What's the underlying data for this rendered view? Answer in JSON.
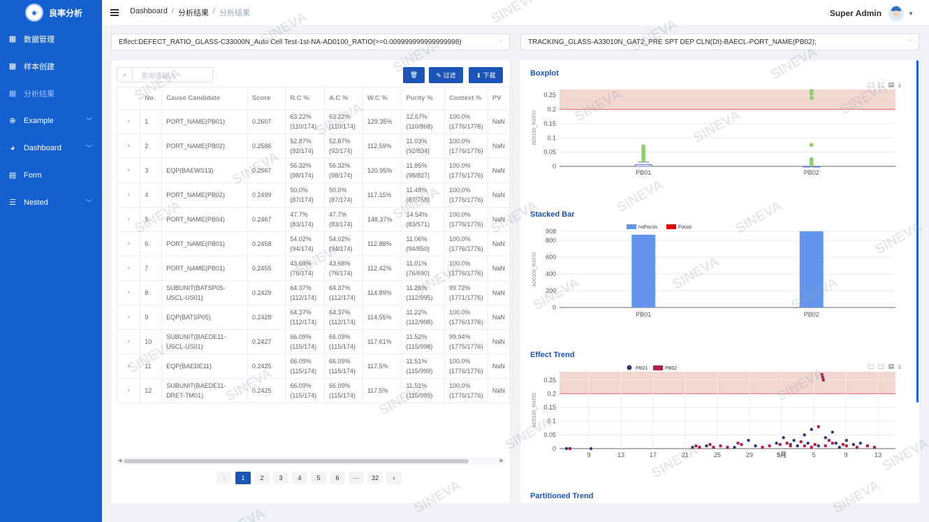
{
  "app": {
    "title": "良率分析"
  },
  "sidebar": {
    "items": [
      {
        "label": "数据管理",
        "icon": "grid-icon",
        "glyph": "▦",
        "chevron": false,
        "active": false
      },
      {
        "label": "样本创建",
        "icon": "grid-icon",
        "glyph": "▦",
        "chevron": false,
        "active": false
      },
      {
        "label": "分析结果",
        "icon": "grid-icon",
        "glyph": "▦",
        "chevron": false,
        "active": true
      },
      {
        "label": "Example",
        "icon": "plus-circle-icon",
        "glyph": "⊕",
        "chevron": true,
        "active": false
      },
      {
        "label": "Dashboard",
        "icon": "dashboard-icon",
        "glyph": "◕",
        "chevron": true,
        "active": false
      },
      {
        "label": "Form",
        "icon": "form-icon",
        "glyph": "▤",
        "chevron": false,
        "active": false
      },
      {
        "label": "Nested",
        "icon": "list-icon",
        "glyph": "☰",
        "chevron": true,
        "active": false
      }
    ]
  },
  "breadcrumb": [
    "Dashboard",
    "分析结果",
    "分析结果"
  ],
  "user": {
    "name": "Super Admin"
  },
  "selects": {
    "left": "Effect:DEFECT_RATIO_GLASS-C33000N_Auto Cell Test-1st-NA-AD0100_RATIO(>=0.009999999999999998)",
    "right": "TRACKING_GLASS-A33010N_GAT2_PRE SPT DEP CLN(DI)-BAECL-PORT_NAME(PB02);"
  },
  "table": {
    "search_placeholder": "查询请输入",
    "buttons": {
      "delete": "🗑",
      "filter": "✎ 过滤",
      "download": "⬇ 下载"
    },
    "columns": [
      "No.",
      "Cause Candidate",
      "Score",
      "R.C %",
      "A.C %",
      "W.C %",
      "Purity %",
      "Context %",
      "PV"
    ],
    "rows": [
      {
        "no": "1",
        "cause": "PORT_NAME(PB01)",
        "score": "0.2607",
        "rc": "63.22%(110/174)",
        "ac": "63.22%(110/174)",
        "wc": "129.35%",
        "purity": "12.67%(110/868)",
        "context": "100.0%(1776/1776)",
        "pv": "NaN"
      },
      {
        "no": "2",
        "cause": "PORT_NAME(PB02)",
        "score": "0.2586",
        "rc": "52.87%(92/174)",
        "ac": "52.87%(92/174)",
        "wc": "112.59%",
        "purity": "11.03%(92/834)",
        "context": "100.0%(1776/1776)",
        "pv": "NaN"
      },
      {
        "no": "3",
        "cause": "EQP(BAEWS13)",
        "score": "0.2567",
        "rc": "56.32%(98/174)",
        "ac": "56.32%(98/174)",
        "wc": "120.95%",
        "purity": "11.85%(98/827)",
        "context": "100.0%(1776/1776)",
        "pv": "NaN"
      },
      {
        "no": "4",
        "cause": "PORT_NAME(PB02)",
        "score": "0.2499",
        "rc": "50.0%(87/174)",
        "ac": "50.0%(87/174)",
        "wc": "117.15%",
        "purity": "11.48%(87/758)",
        "context": "100.0%(1776/1776)",
        "pv": "NaN"
      },
      {
        "no": "5",
        "cause": "PORT_NAME(PB04)",
        "score": "0.2467",
        "rc": "47.7%(83/174)",
        "ac": "47.7%(83/174)",
        "wc": "148.37%",
        "purity": "14.54%(83/571)",
        "context": "100.0%(1776/1776)",
        "pv": "NaN"
      },
      {
        "no": "6",
        "cause": "PORT_NAME(PB01)",
        "score": "0.2458",
        "rc": "54.02%(94/174)",
        "ac": "54.02%(94/174)",
        "wc": "112.88%",
        "purity": "11.06%(94/850)",
        "context": "100.0%(1776/1776)",
        "pv": "NaN"
      },
      {
        "no": "7",
        "cause": "PORT_NAME(PB01)",
        "score": "0.2455",
        "rc": "43.68%(76/174)",
        "ac": "43.68%(76/174)",
        "wc": "112.42%",
        "purity": "11.01%(76/690)",
        "context": "100.0%(1776/1776)",
        "pv": "NaN"
      },
      {
        "no": "8",
        "cause": "SUBUNIT(BATSP05-USCL-US01)",
        "score": "0.2429",
        "rc": "64.37%(112/174)",
        "ac": "64.37%(112/174)",
        "wc": "114.89%",
        "purity": "11.26%(112/995)",
        "context": "99.72%(1771/1776)",
        "pv": "NaN"
      },
      {
        "no": "9",
        "cause": "EQP(BATSP05)",
        "score": "0.2428",
        "rc": "64.37%(112/174)",
        "ac": "64.37%(112/174)",
        "wc": "114.55%",
        "purity": "11.22%(112/998)",
        "context": "100.0%(1776/1776)",
        "pv": "NaN"
      },
      {
        "no": "10",
        "cause": "SUBUNIT(BAEDE11-USCL-US01)",
        "score": "0.2427",
        "rc": "66.09%(115/174)",
        "ac": "66.09%(115/174)",
        "wc": "117.61%",
        "purity": "11.52%(115/998)",
        "context": "99.94%(1775/1776)",
        "pv": "NaN"
      },
      {
        "no": "11",
        "cause": "EQP(BAEDE11)",
        "score": "0.2425",
        "rc": "66.09%(115/174)",
        "ac": "66.09%(115/174)",
        "wc": "117.5%",
        "purity": "11.51%(115/999)",
        "context": "100.0%(1776/1776)",
        "pv": "NaN"
      },
      {
        "no": "12",
        "cause": "SUBUNIT(BAEDE11-DRET-TM01)",
        "score": "0.2425",
        "rc": "66.09%(115/174)",
        "ac": "66.09%(115/174)",
        "wc": "117.5%",
        "purity": "11.51%(115/999)",
        "context": "100.0%(1776/1776)",
        "pv": "NaN"
      }
    ]
  },
  "pagination": {
    "pages": [
      "1",
      "2",
      "3",
      "4",
      "5",
      "6",
      "···",
      "32"
    ],
    "current": "1"
  },
  "charts": {
    "titles": [
      "Boxplot",
      "Stacked Bar",
      "Effect Trend",
      "Partitioned Trend"
    ]
  },
  "watermark": "SINEVA",
  "chart_data": [
    {
      "type": "box",
      "title": "Boxplot",
      "ylabel": "AD0100_RATIO",
      "categories": [
        "PB01",
        "PB02"
      ],
      "yticks": [
        "0",
        "0.05",
        "0.1",
        "0.15",
        "0.2",
        "0.25"
      ],
      "ylim": [
        0,
        0.27
      ],
      "threshold": 0.2,
      "box": {
        "PB01": {
          "q1": 0,
          "median": 0,
          "q3": 0.006,
          "whisker": 0.015
        },
        "PB02": {
          "q1": 0,
          "median": 0,
          "q3": 0,
          "whisker": 0
        }
      },
      "outliers": {
        "PB01": [
          0.02,
          0.025,
          0.03,
          0.035,
          0.04,
          0.045,
          0.05,
          0.055,
          0.06,
          0.065,
          0.07
        ],
        "PB02": [
          0.005,
          0.01,
          0.02,
          0.025,
          0.075,
          0.24,
          0.255,
          0.265
        ]
      },
      "colors": {
        "outlier": "#8fd16f",
        "box": "#5470c6",
        "band": "#f2d6d0",
        "threshold_line": "#ef6b6b"
      }
    },
    {
      "type": "bar",
      "title": "Stacked Bar",
      "ylabel": "AD0100_RATIO",
      "categories": [
        "PB01",
        "PB02"
      ],
      "series": [
        {
          "name": "noFocus",
          "values": [
            868,
            908
          ],
          "color": "#6495ed"
        },
        {
          "name": "Focus",
          "values": [
            0,
            0
          ],
          "color": "#e00000"
        }
      ],
      "yticks": [
        "0",
        "200",
        "400",
        "600",
        "800",
        "908"
      ],
      "ylim": [
        0,
        908
      ]
    },
    {
      "type": "scatter",
      "title": "Effect Trend",
      "ylabel": "AD0100_RATIO",
      "yticks": [
        "0",
        "0.05",
        "0.1",
        "0.15",
        "0.2",
        "0.25"
      ],
      "xticks": [
        "9",
        "13",
        "17",
        "21",
        "25",
        "29",
        "5月",
        "5",
        "9",
        "13"
      ],
      "ylim": [
        0,
        0.28
      ],
      "threshold": 0.2,
      "series": [
        {
          "name": "PB01",
          "color": "#2e3a70",
          "points": [
            [
              1,
              0
            ],
            [
              4.5,
              0
            ],
            [
              19,
              0.005
            ],
            [
              21,
              0.01
            ],
            [
              25,
              0.005
            ],
            [
              27,
              0.03
            ],
            [
              28,
              0.01
            ],
            [
              31,
              0.02
            ],
            [
              32,
              0.04
            ],
            [
              33,
              0.015
            ],
            [
              33.5,
              0.03
            ],
            [
              34,
              0.01
            ],
            [
              35,
              0.05
            ],
            [
              35.5,
              0.02
            ],
            [
              36,
              0.07
            ],
            [
              37,
              0.01
            ],
            [
              38,
              0.04
            ],
            [
              39,
              0.06
            ],
            [
              39.5,
              0.02
            ],
            [
              40,
              0.005
            ],
            [
              41,
              0.03
            ],
            [
              42,
              0.015
            ],
            [
              43,
              0.02
            ]
          ]
        },
        {
          "name": "PB02",
          "color": "#b0204a",
          "points": [
            [
              1.5,
              0
            ],
            [
              19.5,
              0.01
            ],
            [
              20,
              0.005
            ],
            [
              21.5,
              0.015
            ],
            [
              22,
              0.005
            ],
            [
              23,
              0.01
            ],
            [
              24,
              0.005
            ],
            [
              25.5,
              0.02
            ],
            [
              26,
              0.015
            ],
            [
              29,
              0.005
            ],
            [
              30,
              0.01
            ],
            [
              31.5,
              0.015
            ],
            [
              32.5,
              0.02
            ],
            [
              33,
              0.01
            ],
            [
              34.5,
              0.025
            ],
            [
              35,
              0.01
            ],
            [
              36.5,
              0.015
            ],
            [
              37,
              0.08
            ],
            [
              37.5,
              0.27
            ],
            [
              37.6,
              0.26
            ],
            [
              37.7,
              0.25
            ],
            [
              38,
              0.01
            ],
            [
              39,
              0.02
            ],
            [
              40.5,
              0.015
            ],
            [
              41,
              0.01
            ],
            [
              42.5,
              0.005
            ],
            [
              44,
              0.01
            ],
            [
              45,
              0.005
            ],
            [
              38.5,
              0.03
            ],
            [
              36,
              0.005
            ]
          ]
        }
      ]
    },
    {
      "type": "line",
      "title": "Partitioned Trend"
    }
  ]
}
